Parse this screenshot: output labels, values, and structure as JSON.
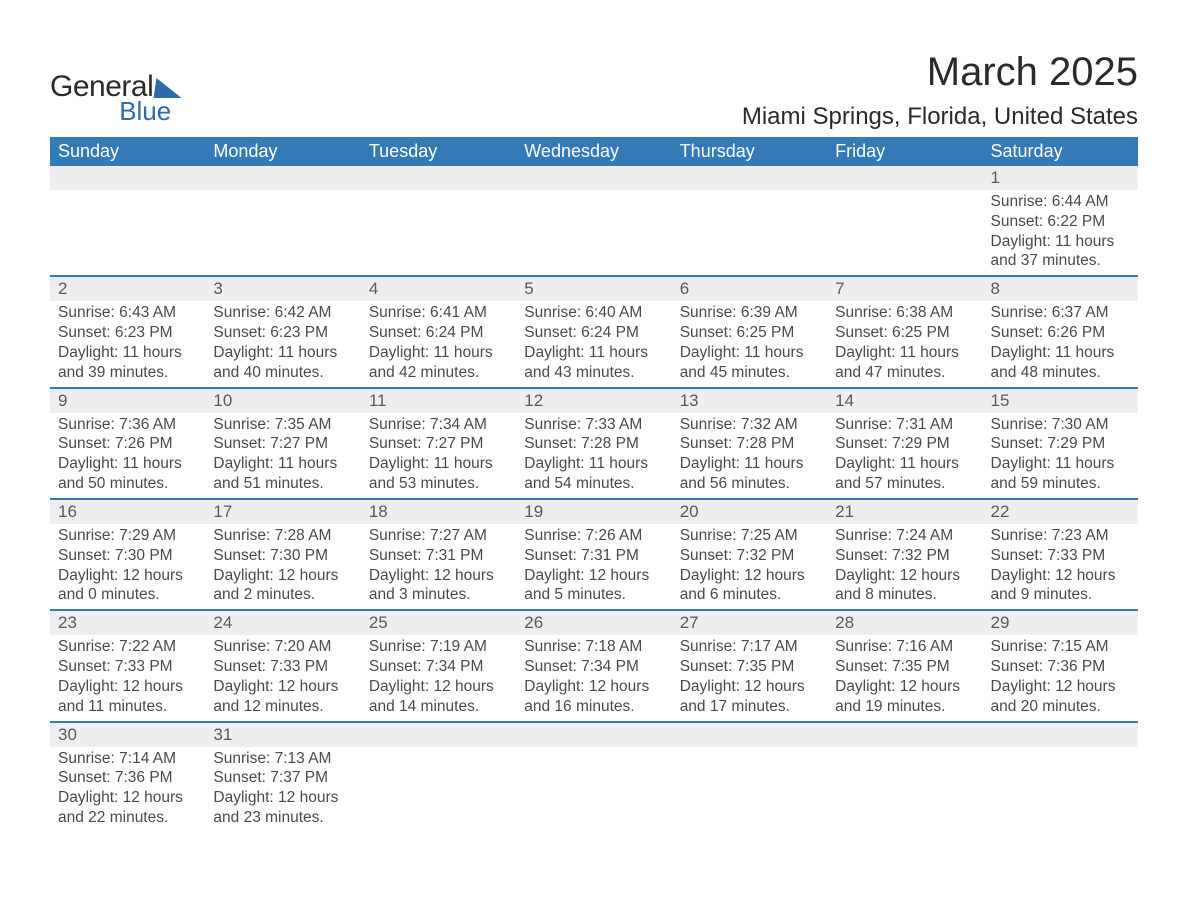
{
  "logo": {
    "top": "General",
    "bottom": "Blue"
  },
  "title": "March 2025",
  "location": "Miami Springs, Florida, United States",
  "colors": {
    "header_bg": "#337ab7",
    "header_text": "#ffffff",
    "daynum_bg": "#eeeeee",
    "text": "#4a4a4a",
    "row_border": "#337ab7",
    "logo_accent": "#2d6ca8",
    "page_bg": "#ffffff"
  },
  "typography": {
    "title_size_pt": 30,
    "location_size_pt": 18,
    "header_size_pt": 14,
    "cell_size_pt": 12
  },
  "calendar": {
    "type": "table",
    "columns": [
      "Sunday",
      "Monday",
      "Tuesday",
      "Wednesday",
      "Thursday",
      "Friday",
      "Saturday"
    ],
    "weeks": [
      [
        null,
        null,
        null,
        null,
        null,
        null,
        {
          "day": "1",
          "sunrise": "6:44 AM",
          "sunset": "6:22 PM",
          "daylight": "11 hours and 37 minutes."
        }
      ],
      [
        {
          "day": "2",
          "sunrise": "6:43 AM",
          "sunset": "6:23 PM",
          "daylight": "11 hours and 39 minutes."
        },
        {
          "day": "3",
          "sunrise": "6:42 AM",
          "sunset": "6:23 PM",
          "daylight": "11 hours and 40 minutes."
        },
        {
          "day": "4",
          "sunrise": "6:41 AM",
          "sunset": "6:24 PM",
          "daylight": "11 hours and 42 minutes."
        },
        {
          "day": "5",
          "sunrise": "6:40 AM",
          "sunset": "6:24 PM",
          "daylight": "11 hours and 43 minutes."
        },
        {
          "day": "6",
          "sunrise": "6:39 AM",
          "sunset": "6:25 PM",
          "daylight": "11 hours and 45 minutes."
        },
        {
          "day": "7",
          "sunrise": "6:38 AM",
          "sunset": "6:25 PM",
          "daylight": "11 hours and 47 minutes."
        },
        {
          "day": "8",
          "sunrise": "6:37 AM",
          "sunset": "6:26 PM",
          "daylight": "11 hours and 48 minutes."
        }
      ],
      [
        {
          "day": "9",
          "sunrise": "7:36 AM",
          "sunset": "7:26 PM",
          "daylight": "11 hours and 50 minutes."
        },
        {
          "day": "10",
          "sunrise": "7:35 AM",
          "sunset": "7:27 PM",
          "daylight": "11 hours and 51 minutes."
        },
        {
          "day": "11",
          "sunrise": "7:34 AM",
          "sunset": "7:27 PM",
          "daylight": "11 hours and 53 minutes."
        },
        {
          "day": "12",
          "sunrise": "7:33 AM",
          "sunset": "7:28 PM",
          "daylight": "11 hours and 54 minutes."
        },
        {
          "day": "13",
          "sunrise": "7:32 AM",
          "sunset": "7:28 PM",
          "daylight": "11 hours and 56 minutes."
        },
        {
          "day": "14",
          "sunrise": "7:31 AM",
          "sunset": "7:29 PM",
          "daylight": "11 hours and 57 minutes."
        },
        {
          "day": "15",
          "sunrise": "7:30 AM",
          "sunset": "7:29 PM",
          "daylight": "11 hours and 59 minutes."
        }
      ],
      [
        {
          "day": "16",
          "sunrise": "7:29 AM",
          "sunset": "7:30 PM",
          "daylight": "12 hours and 0 minutes."
        },
        {
          "day": "17",
          "sunrise": "7:28 AM",
          "sunset": "7:30 PM",
          "daylight": "12 hours and 2 minutes."
        },
        {
          "day": "18",
          "sunrise": "7:27 AM",
          "sunset": "7:31 PM",
          "daylight": "12 hours and 3 minutes."
        },
        {
          "day": "19",
          "sunrise": "7:26 AM",
          "sunset": "7:31 PM",
          "daylight": "12 hours and 5 minutes."
        },
        {
          "day": "20",
          "sunrise": "7:25 AM",
          "sunset": "7:32 PM",
          "daylight": "12 hours and 6 minutes."
        },
        {
          "day": "21",
          "sunrise": "7:24 AM",
          "sunset": "7:32 PM",
          "daylight": "12 hours and 8 minutes."
        },
        {
          "day": "22",
          "sunrise": "7:23 AM",
          "sunset": "7:33 PM",
          "daylight": "12 hours and 9 minutes."
        }
      ],
      [
        {
          "day": "23",
          "sunrise": "7:22 AM",
          "sunset": "7:33 PM",
          "daylight": "12 hours and 11 minutes."
        },
        {
          "day": "24",
          "sunrise": "7:20 AM",
          "sunset": "7:33 PM",
          "daylight": "12 hours and 12 minutes."
        },
        {
          "day": "25",
          "sunrise": "7:19 AM",
          "sunset": "7:34 PM",
          "daylight": "12 hours and 14 minutes."
        },
        {
          "day": "26",
          "sunrise": "7:18 AM",
          "sunset": "7:34 PM",
          "daylight": "12 hours and 16 minutes."
        },
        {
          "day": "27",
          "sunrise": "7:17 AM",
          "sunset": "7:35 PM",
          "daylight": "12 hours and 17 minutes."
        },
        {
          "day": "28",
          "sunrise": "7:16 AM",
          "sunset": "7:35 PM",
          "daylight": "12 hours and 19 minutes."
        },
        {
          "day": "29",
          "sunrise": "7:15 AM",
          "sunset": "7:36 PM",
          "daylight": "12 hours and 20 minutes."
        }
      ],
      [
        {
          "day": "30",
          "sunrise": "7:14 AM",
          "sunset": "7:36 PM",
          "daylight": "12 hours and 22 minutes."
        },
        {
          "day": "31",
          "sunrise": "7:13 AM",
          "sunset": "7:37 PM",
          "daylight": "12 hours and 23 minutes."
        },
        null,
        null,
        null,
        null,
        null
      ]
    ],
    "labels": {
      "sunrise": "Sunrise: ",
      "sunset": "Sunset: ",
      "daylight": "Daylight: "
    }
  }
}
